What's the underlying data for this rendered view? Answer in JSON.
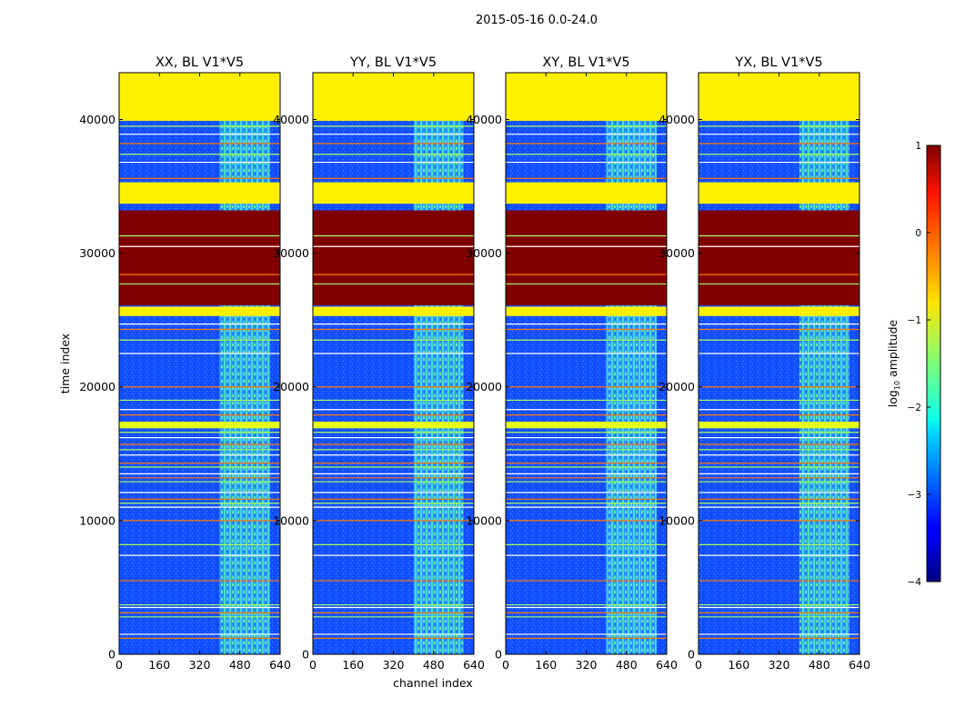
{
  "suptitle": "2015-05-16 0.0-24.0",
  "chart_data": {
    "type": "heatmap",
    "panels": [
      {
        "title": "XX, BL V1*V5"
      },
      {
        "title": "YY, BL V1*V5"
      },
      {
        "title": "XY, BL V1*V5"
      },
      {
        "title": "YX, BL V1*V5"
      }
    ],
    "xlabel": "channel index",
    "ylabel": "time index",
    "xlim": [
      0,
      640
    ],
    "ylim": [
      0,
      43500
    ],
    "xticks": [
      0,
      160,
      320,
      480,
      640
    ],
    "yticks": [
      0,
      10000,
      20000,
      30000,
      40000
    ],
    "colorbar": {
      "label": "log10 amplitude",
      "label_main": "log",
      "label_sub": "10",
      "label_rest": " amplitude",
      "range": [
        -4,
        1
      ],
      "ticks": [
        1,
        0,
        -1,
        -2,
        -3,
        -4
      ],
      "tick_labels": [
        "1",
        "0",
        "−1",
        "−2",
        "−3",
        "−4"
      ],
      "colormap": "jet"
    },
    "structure": {
      "background_log10": -3.3,
      "rfi_channel_range": [
        400,
        600
      ],
      "rfi_log10": -2.0,
      "bands": [
        {
          "t": [
            39900,
            43500
          ],
          "log10": -0.8,
          "label": "saturated block"
        },
        {
          "t": [
            33700,
            35300
          ],
          "log10": -0.8,
          "label": "saturated block"
        },
        {
          "t": [
            26100,
            33200
          ],
          "log10": 1.0,
          "label": "high amplitude block"
        },
        {
          "t": [
            25300,
            26000
          ],
          "log10": -0.8,
          "label": "saturated block"
        },
        {
          "t": [
            16900,
            17400
          ],
          "log10": -1.0,
          "label": "bright band"
        }
      ],
      "flag_lines_t": [
        1200,
        1500,
        2800,
        3100,
        3500,
        3700,
        5500,
        7400,
        8200,
        10000,
        11000,
        11300,
        11600,
        12100,
        12900,
        13200,
        13500,
        14000,
        14300,
        14900,
        15300,
        15700,
        16200,
        16600,
        17900,
        18300,
        19000,
        20000,
        22500,
        23500,
        24300,
        24700,
        27700,
        28400,
        30500,
        31300,
        35600,
        36800,
        37400,
        38200,
        38900,
        39500
      ]
    }
  }
}
